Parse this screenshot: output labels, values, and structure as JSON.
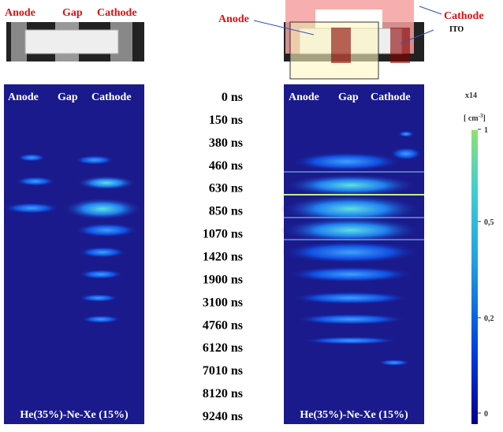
{
  "left_diagram": {
    "labels": [
      "Anode",
      "Gap",
      "Cathode"
    ]
  },
  "right_diagram": {
    "anode": "Anode",
    "cathode": "Cathode",
    "ito": "ITO"
  },
  "left_panel": {
    "headers": [
      "Anode",
      "Gap",
      "Cathode"
    ],
    "footer": "He(35%)-Ne-Xe (15%)"
  },
  "right_panel": {
    "headers": [
      "Anode",
      "Gap",
      "Cathode"
    ],
    "footer": "He(35%)-Ne-Xe (15%)"
  },
  "times": [
    "0 ns",
    "150 ns",
    "380 ns",
    "460 ns",
    "630 ns",
    "850 ns",
    "1070 ns",
    "1420 ns",
    "1900 ns",
    "3100 ns",
    "4760 ns",
    "6120 ns",
    "7010 ns",
    "8120 ns",
    "9240 ns"
  ],
  "colorbar": {
    "multiplier": "x14",
    "unit": "[ cm",
    "unit_exp": "-3",
    "unit_close": "]",
    "tick_labels": [
      "1",
      "0,5",
      "0,2",
      "0"
    ]
  }
}
